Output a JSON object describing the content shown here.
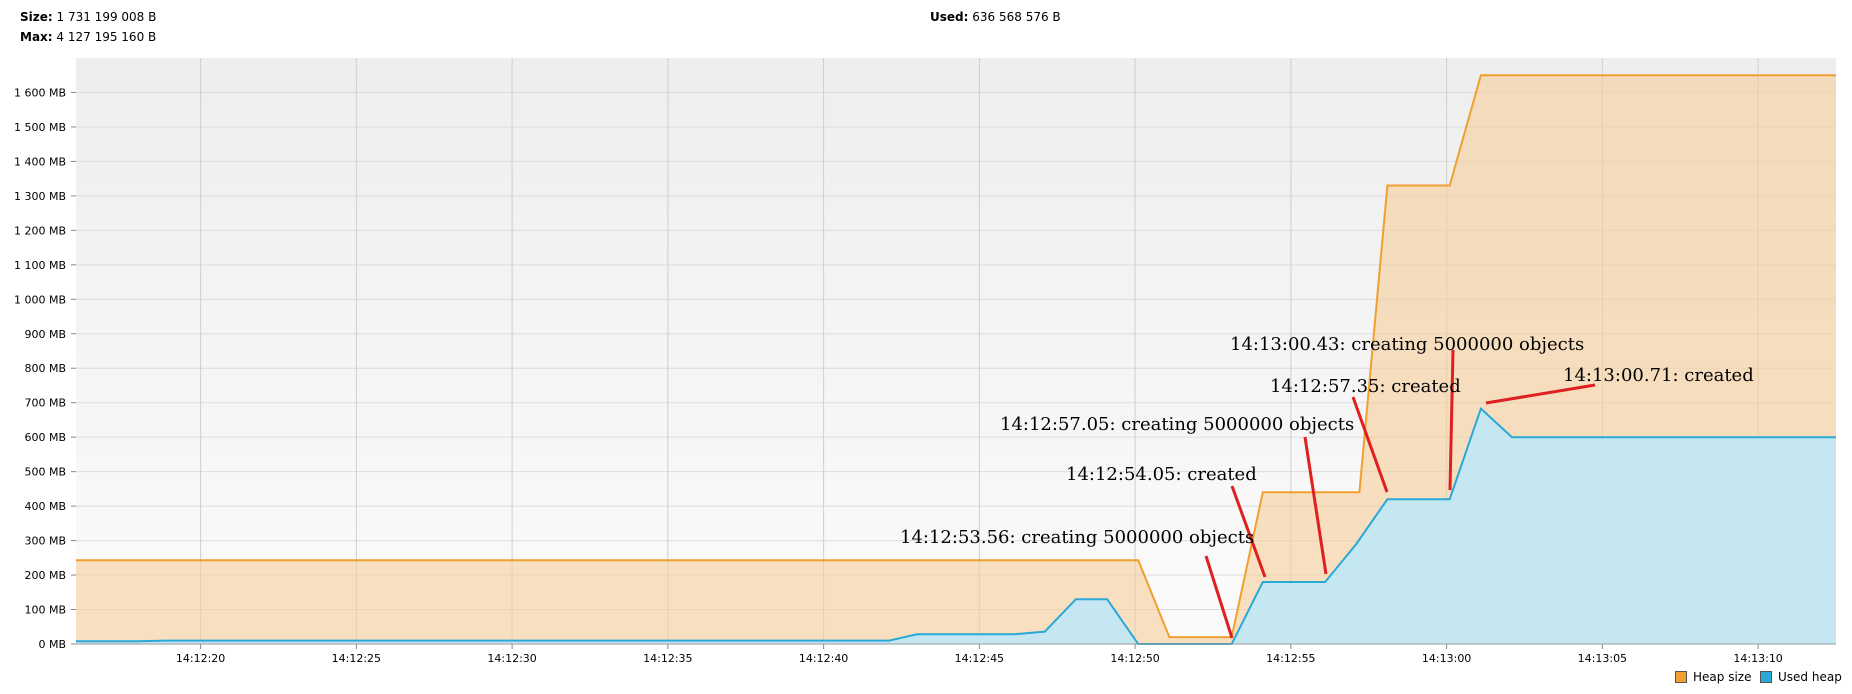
{
  "stats": {
    "size_label": "Size:",
    "size_value": "1 731 199 008 B",
    "max_label": "Max:",
    "max_value": "4 127 195 160 B",
    "used_label": "Used:",
    "used_value": "636 568 576 B"
  },
  "colors": {
    "heap_line": "#f0a030",
    "heap_fill": "#f5cd9a",
    "used_line": "#2aa8d8",
    "used_fill": "#bfe8f7",
    "annotation": "#e02020"
  },
  "chart_data": {
    "type": "area",
    "xlim": [
      "14:12:16",
      "14:13:12.5"
    ],
    "ylim": [
      0,
      1700
    ],
    "ytick_values": [
      0,
      100,
      200,
      300,
      400,
      500,
      600,
      700,
      800,
      900,
      1000,
      1100,
      1200,
      1300,
      1400,
      1500,
      1600
    ],
    "ytick_labels": [
      "0 MB",
      "100 MB",
      "200 MB",
      "300 MB",
      "400 MB",
      "500 MB",
      "600 MB",
      "700 MB",
      "800 MB",
      "900 MB",
      "1 000 MB",
      "1 100 MB",
      "1 200 MB",
      "1 300 MB",
      "1 400 MB",
      "1 500 MB",
      "1 600 MB"
    ],
    "xtick_values": [
      "14:12:20",
      "14:12:25",
      "14:12:30",
      "14:12:35",
      "14:12:40",
      "14:12:45",
      "14:12:50",
      "14:12:55",
      "14:13:00",
      "14:13:05",
      "14:13:10"
    ],
    "xtick_labels": [
      "14:12:20",
      "14:12:25",
      "14:12:30",
      "14:12:35",
      "14:12:40",
      "14:12:45",
      "14:12:50",
      "14:12:55",
      "14:13:00",
      "14:13:05",
      "14:13:10"
    ],
    "grid": true,
    "legend_position": "bottom-right",
    "series": [
      {
        "name": "Heap size",
        "x": [
          "14:12:16",
          "14:12:50.1",
          "14:12:51.1",
          "14:12:53.1",
          "14:12:54.1",
          "14:12:57.2",
          "14:12:58.1",
          "14:13:00.1",
          "14:13:01.1",
          "14:13:12.5"
        ],
        "y": [
          243,
          243,
          20,
          20,
          440,
          440,
          1330,
          1330,
          1650,
          1650
        ]
      },
      {
        "name": "Used heap",
        "x": [
          "14:12:16",
          "14:12:18",
          "14:12:18.9",
          "14:12:42.1",
          "14:12:43",
          "14:12:46.1",
          "14:12:47.1",
          "14:12:48.1",
          "14:12:49.1",
          "14:12:50.1",
          "14:12:51.1",
          "14:12:53.1",
          "14:12:54.1",
          "14:12:56.1",
          "14:12:57.1",
          "14:12:58.1",
          "14:13:00.1",
          "14:13:01.1",
          "14:13:02.1",
          "14:13:12.5"
        ],
        "y": [
          8,
          8,
          10,
          10,
          28,
          28,
          36,
          130,
          130,
          0,
          0,
          0,
          180,
          180,
          290,
          420,
          420,
          683,
          600,
          600
        ]
      }
    ],
    "annotations": [
      {
        "text": "14:12:53.56: creating 5000000 objects"
      },
      {
        "text": "14:12:54.05: created"
      },
      {
        "text": "14:12:57.05: creating 5000000 objects"
      },
      {
        "text": "14:12:57.35: created"
      },
      {
        "text": "14:13:00.43: creating 5000000 objects"
      },
      {
        "text": "14:13:00.71: created"
      }
    ]
  },
  "legend": {
    "heap_label": "Heap size",
    "used_label": "Used heap"
  }
}
